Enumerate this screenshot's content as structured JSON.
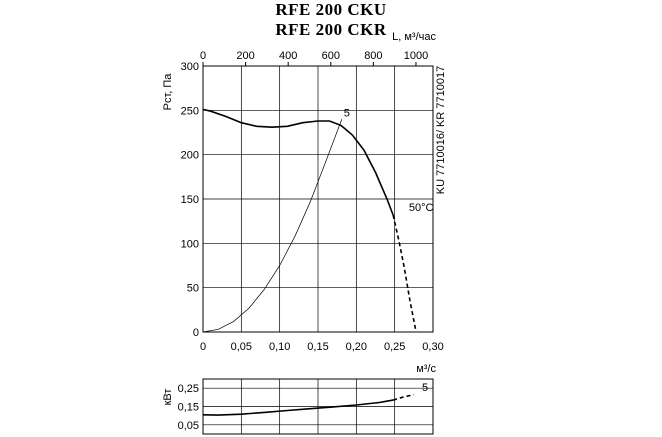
{
  "chart_data": [
    {
      "type": "line",
      "title": "RFE 200 CKU",
      "subtitle": "RFE 200 CKR",
      "xlabel": "м³/с",
      "x2label": "L, м³/час",
      "ylabel": "Pст, Па",
      "side_label": "KU 7710016/ KR 7710017",
      "xlim": [
        0,
        0.3
      ],
      "x2lim": [
        0,
        1080
      ],
      "ylim": [
        0,
        300
      ],
      "x_ticks": [
        "0",
        "0,05",
        "0,10",
        "0,15",
        "0,20",
        "0,25",
        "0,30"
      ],
      "x_tick_values": [
        0,
        0.05,
        0.1,
        0.15,
        0.2,
        0.25,
        0.3
      ],
      "x2_ticks": [
        "0",
        "200",
        "400",
        "600",
        "800",
        "1000"
      ],
      "x2_tick_values": [
        0,
        200,
        400,
        600,
        800,
        1000
      ],
      "y_ticks": [
        "0",
        "50",
        "100",
        "150",
        "200",
        "250",
        "300"
      ],
      "y_tick_values": [
        0,
        50,
        100,
        150,
        200,
        250,
        300
      ],
      "grid": true,
      "series": [
        {
          "x": [
            0,
            0.01,
            0.03,
            0.05,
            0.07,
            0.09,
            0.11,
            0.13,
            0.15,
            0.165,
            0.18,
            0.195,
            0.21,
            0.225,
            0.24,
            0.248
          ],
          "y": [
            251,
            249,
            243,
            236,
            232,
            231,
            232,
            236,
            238,
            238,
            233,
            222,
            205,
            180,
            150,
            132
          ],
          "style": "solid"
        },
        {
          "x": [
            0.248,
            0.255,
            0.262,
            0.27,
            0.278
          ],
          "y": [
            132,
            105,
            75,
            35,
            0
          ],
          "style": "dashed"
        },
        {
          "x": [
            0,
            0.02,
            0.04,
            0.06,
            0.08,
            0.1,
            0.12,
            0.14,
            0.16,
            0.181
          ],
          "y": [
            0,
            3,
            12,
            27,
            48,
            75,
            108,
            147,
            192,
            240
          ],
          "style": "thin"
        }
      ],
      "annotations": [
        {
          "text": "5",
          "x": 0.181,
          "y": 241
        },
        {
          "text": "50°C",
          "x": 0.266,
          "y": 134
        }
      ]
    },
    {
      "type": "line",
      "ylabel": "кВт",
      "xlim": [
        0,
        0.3
      ],
      "ylim": [
        0,
        0.3
      ],
      "y_ticks": [
        "0,05",
        "0,15",
        "0,25"
      ],
      "y_tick_values": [
        0.05,
        0.15,
        0.25
      ],
      "grid": true,
      "series": [
        {
          "x": [
            0,
            0.02,
            0.05,
            0.08,
            0.11,
            0.14,
            0.17,
            0.2,
            0.23,
            0.248
          ],
          "y": [
            0.105,
            0.103,
            0.108,
            0.118,
            0.128,
            0.138,
            0.148,
            0.158,
            0.172,
            0.185
          ],
          "style": "solid"
        },
        {
          "x": [
            0.248,
            0.26,
            0.275
          ],
          "y": [
            0.185,
            0.2,
            0.215
          ],
          "style": "dashed"
        }
      ],
      "annotations": [
        {
          "text": "5",
          "x": 0.283,
          "y": 0.225
        }
      ]
    }
  ]
}
